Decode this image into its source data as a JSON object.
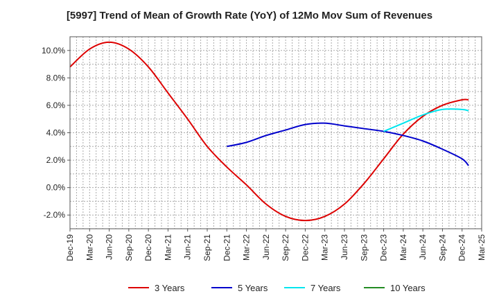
{
  "chart_data": {
    "type": "line",
    "title": "[5997]  Trend of Mean of Growth Rate (YoY) of 12Mo Mov Sum of Revenues",
    "xlabel": "",
    "ylabel": "",
    "ylim": [
      -3.0,
      11.0
    ],
    "yticks": [
      -2.0,
      0.0,
      2.0,
      4.0,
      6.0,
      8.0,
      10.0
    ],
    "ytick_labels": [
      "-2.0%",
      "0.0%",
      "2.0%",
      "4.0%",
      "6.0%",
      "8.0%",
      "10.0%"
    ],
    "x_tick_labels": [
      "Dec-19",
      "Mar-20",
      "Jun-20",
      "Sep-20",
      "Dec-20",
      "Mar-21",
      "Jun-21",
      "Sep-21",
      "Dec-21",
      "Mar-22",
      "Jun-22",
      "Sep-22",
      "Dec-22",
      "Mar-23",
      "Jun-23",
      "Sep-23",
      "Dec-23",
      "Mar-24",
      "Jun-24",
      "Sep-24",
      "Dec-24",
      "Mar-25"
    ],
    "grid": true,
    "legend_position": "bottom",
    "series": [
      {
        "name": "3 Years",
        "color": "#dd0000",
        "points": [
          [
            0,
            8.8
          ],
          [
            1,
            10.1
          ],
          [
            2,
            10.6
          ],
          [
            3,
            10.1
          ],
          [
            4,
            8.8
          ],
          [
            5,
            6.9
          ],
          [
            6,
            5.0
          ],
          [
            7,
            3.0
          ],
          [
            8,
            1.5
          ],
          [
            9,
            0.2
          ],
          [
            10,
            -1.2
          ],
          [
            11,
            -2.1
          ],
          [
            12,
            -2.4
          ],
          [
            13,
            -2.1
          ],
          [
            14,
            -1.2
          ],
          [
            15,
            0.3
          ],
          [
            16,
            2.1
          ],
          [
            17,
            3.9
          ],
          [
            18,
            5.2
          ],
          [
            19,
            6.0
          ],
          [
            20,
            6.4
          ],
          [
            20.33,
            6.4
          ]
        ]
      },
      {
        "name": "5 Years",
        "color": "#0000cc",
        "points": [
          [
            8,
            3.0
          ],
          [
            9,
            3.3
          ],
          [
            10,
            3.8
          ],
          [
            11,
            4.2
          ],
          [
            12,
            4.6
          ],
          [
            13,
            4.7
          ],
          [
            14,
            4.5
          ],
          [
            15,
            4.3
          ],
          [
            16,
            4.1
          ],
          [
            17,
            3.8
          ],
          [
            18,
            3.4
          ],
          [
            19,
            2.8
          ],
          [
            20,
            2.1
          ],
          [
            20.33,
            1.6
          ]
        ]
      },
      {
        "name": "7 Years",
        "color": "#00e5ee",
        "points": [
          [
            16,
            4.1
          ],
          [
            17,
            4.7
          ],
          [
            18,
            5.3
          ],
          [
            19,
            5.7
          ],
          [
            20,
            5.7
          ],
          [
            20.33,
            5.6
          ]
        ]
      },
      {
        "name": "10 Years",
        "color": "#228b22",
        "points": []
      }
    ]
  }
}
